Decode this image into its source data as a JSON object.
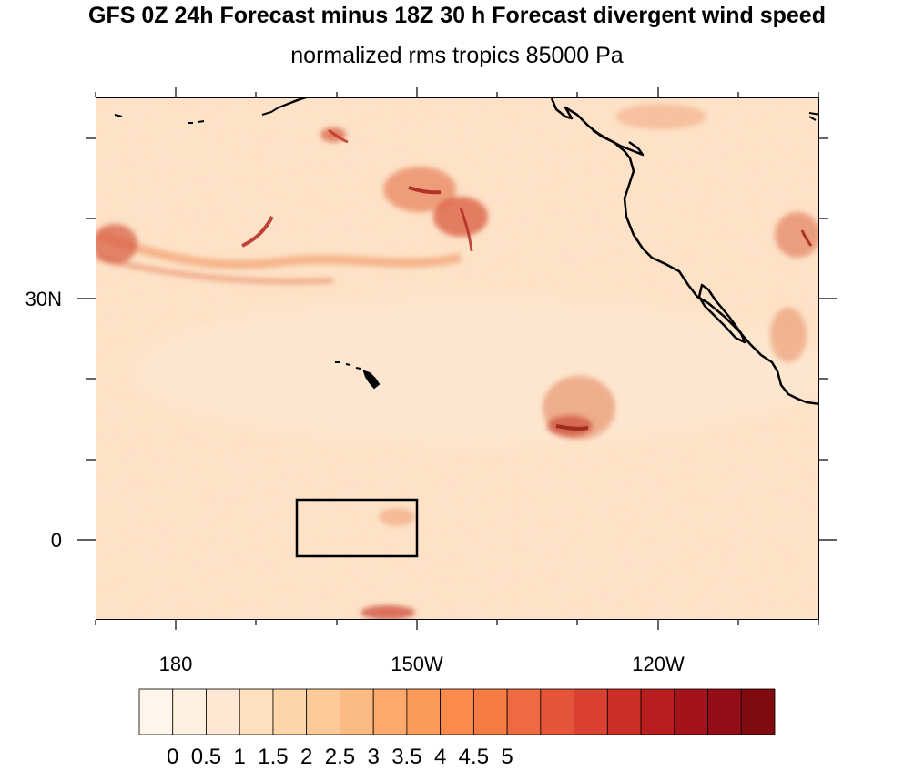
{
  "title": "GFS 0Z 24h Forecast minus 18Z 30 h Forecast divergent wind speed",
  "subtitle": "normalized rms tropics 85000 Pa",
  "map": {
    "lat_labels": [
      "30N",
      "0"
    ],
    "lon_labels": [
      "180",
      "150W",
      "120W"
    ],
    "region_box": {
      "lon_from": -165,
      "lon_to": -150,
      "lat_from": -2,
      "lat_to": 5
    }
  },
  "colorbar": {
    "labels": [
      "0",
      "0.5",
      "1",
      "1.5",
      "2",
      "2.5",
      "3",
      "3.5",
      "4",
      "4.5",
      "5"
    ],
    "colors": [
      "#fff5eb",
      "#fff0e0",
      "#fee8d3",
      "#fee0bf",
      "#fdd5ab",
      "#fdca99",
      "#fdbb84",
      "#fca96e",
      "#fc9a5c",
      "#fb8c4d",
      "#f67c46",
      "#ef6a40",
      "#e5553a",
      "#da4131",
      "#cc2f27",
      "#b81d1f",
      "#a5131a",
      "#930d16",
      "#7f0a10"
    ]
  }
}
